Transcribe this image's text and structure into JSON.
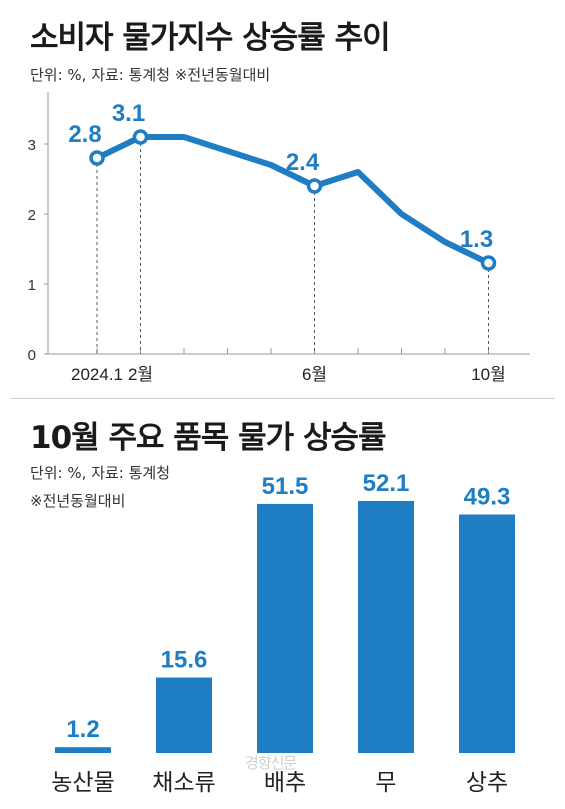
{
  "chart_data": [
    {
      "type": "line",
      "title": "소비자 물가지수 상승률 추이",
      "subtitle": "단위: %, 자료: 통계청 ※전년동월대비",
      "x": [
        "2024.1",
        "2024.2",
        "2024.3",
        "2024.4",
        "2024.5",
        "2024.6",
        "2024.7",
        "2024.8",
        "2024.9",
        "2024.10"
      ],
      "x_tick_labels": [
        {
          "x": "2024.1",
          "label": "2024.1"
        },
        {
          "x": "2024.2",
          "label": "2월"
        },
        {
          "x": "2024.6",
          "label": "6월"
        },
        {
          "x": "2024.10",
          "label": "10월"
        }
      ],
      "series": [
        {
          "values": [
            2.8,
            3.1,
            3.1,
            2.9,
            2.7,
            2.4,
            2.6,
            2.0,
            1.6,
            1.3
          ]
        }
      ],
      "labeled_points": [
        {
          "x": "2024.1",
          "value": "2.8"
        },
        {
          "x": "2024.2",
          "value": "3.1"
        },
        {
          "x": "2024.6",
          "value": "2.4"
        },
        {
          "x": "2024.10",
          "value": "1.3"
        }
      ],
      "y_ticks": [
        "0",
        "1",
        "2",
        "3"
      ],
      "ylim": [
        0,
        3.4
      ],
      "grid": false,
      "color": "#1f7dc4"
    },
    {
      "type": "bar",
      "title": "10월 주요 품목 물가 상승률",
      "subtitle": "단위: %, 자료: 통계청",
      "subtitle2": "※전년동월대비",
      "categories": [
        "농산물",
        "채소류",
        "배추",
        "무",
        "상추"
      ],
      "values": [
        1.2,
        15.6,
        51.5,
        52.1,
        49.3
      ],
      "value_labels": [
        "1.2",
        "15.6",
        "51.5",
        "52.1",
        "49.3"
      ],
      "ylim": [
        0,
        52.1
      ],
      "color": "#1f7dc4"
    }
  ],
  "watermark": "경향신문"
}
